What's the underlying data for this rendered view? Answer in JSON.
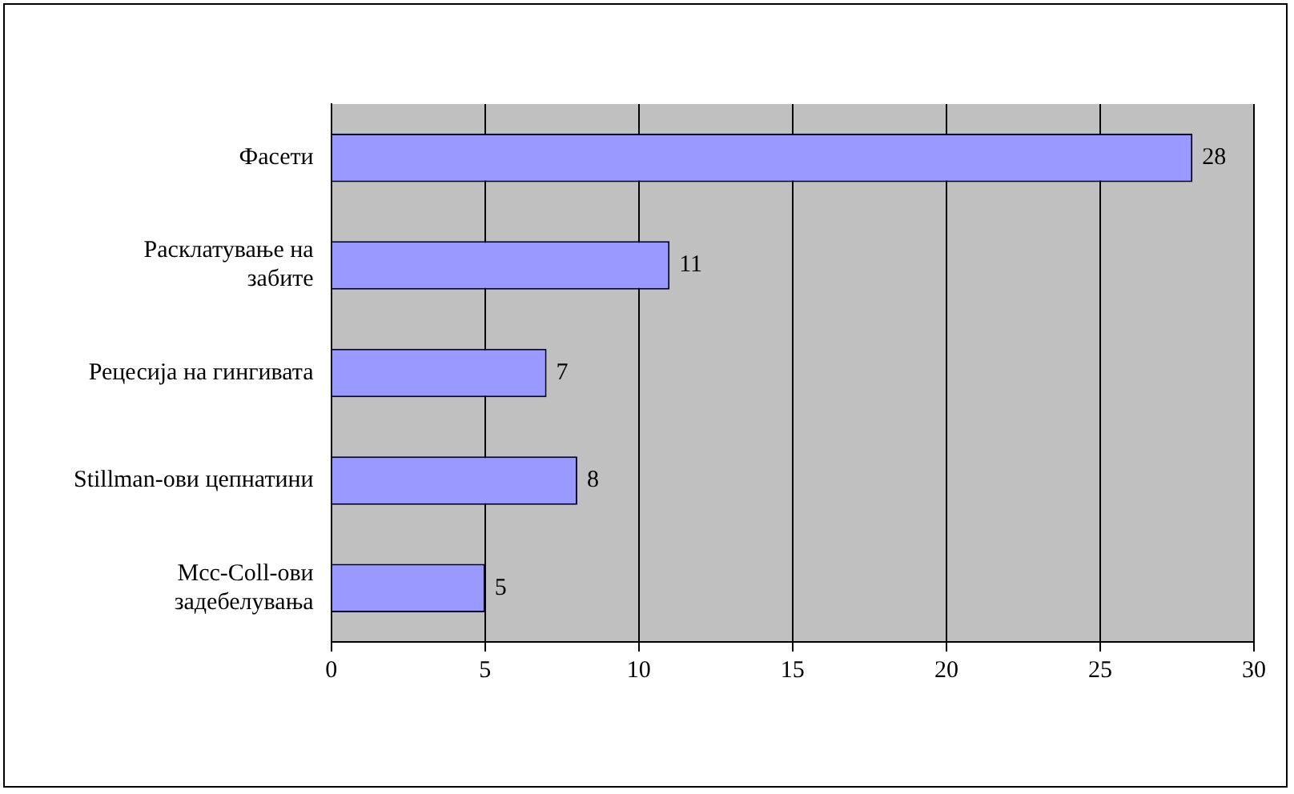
{
  "chart_data": {
    "type": "bar",
    "orientation": "horizontal",
    "categories": [
      "Фасети",
      "Расклатување на забите",
      "Рецесија на гингивата",
      "Stillman-ови цепнатини",
      "Mcc-Coll-ови задебелувања"
    ],
    "values": [
      28,
      11,
      7,
      8,
      5
    ],
    "color": "#9999ff",
    "xlim": [
      0,
      30
    ],
    "xticks": [
      0,
      5,
      10,
      15,
      20,
      25,
      30
    ],
    "grid": "x",
    "data_labels": true
  }
}
